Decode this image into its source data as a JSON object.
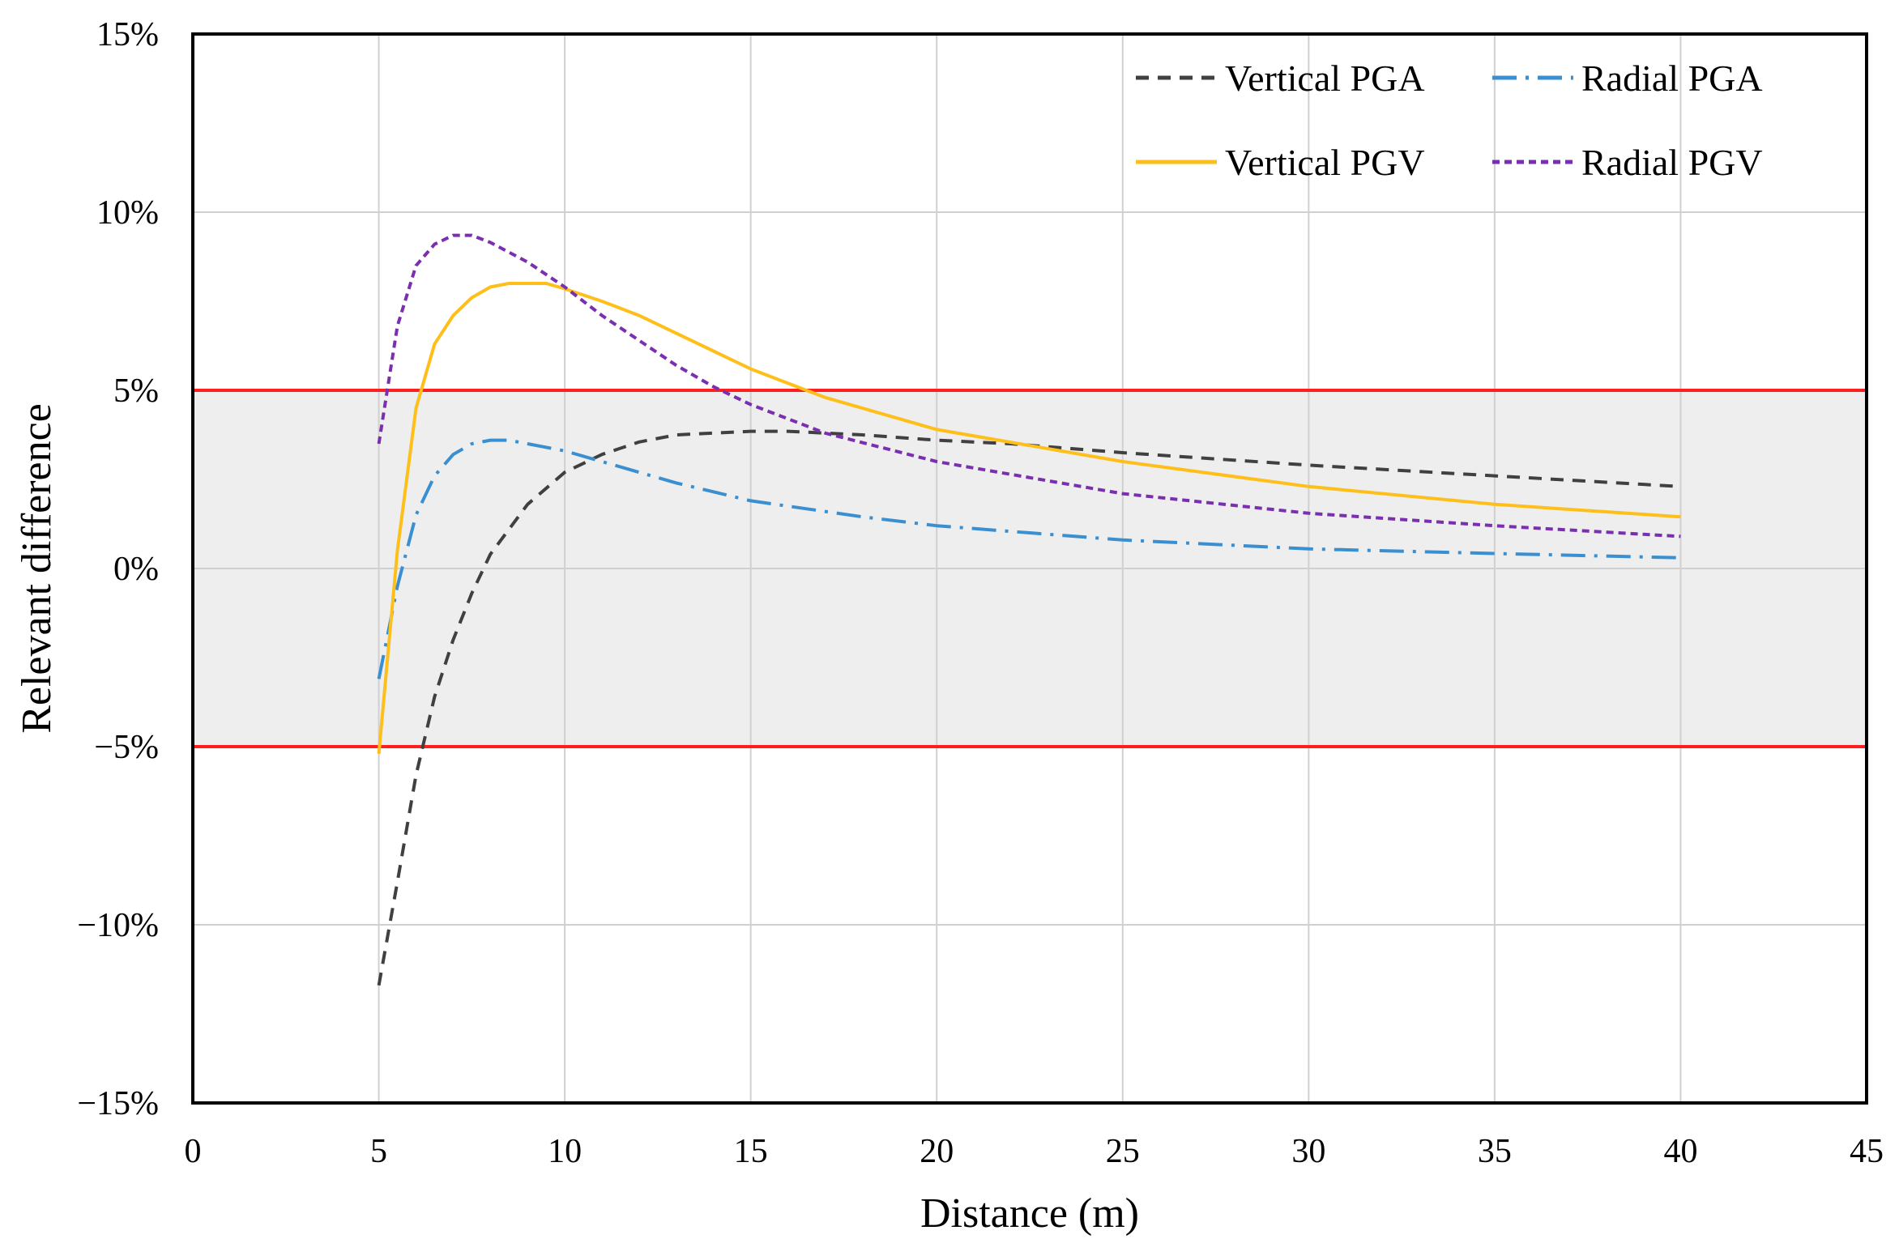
{
  "chart_data": {
    "type": "line",
    "title": "",
    "xlabel": "Distance (m)",
    "ylabel": "Relevant difference",
    "xlim": [
      0,
      45
    ],
    "ylim": [
      -15,
      15
    ],
    "x_ticks": [
      0,
      5,
      10,
      15,
      20,
      25,
      30,
      35,
      40,
      45
    ],
    "x_tick_labels": [
      "0",
      "5",
      "10",
      "15",
      "20",
      "25",
      "30",
      "35",
      "40",
      "45"
    ],
    "y_ticks": [
      15,
      10,
      5,
      0,
      -5,
      -10,
      -15
    ],
    "y_tick_labels": [
      "15%",
      "10%",
      "5%",
      "0%",
      "−5%",
      "−10%",
      "−15%"
    ],
    "grid": true,
    "legend_position": "top-right",
    "tolerance_band": {
      "upper": 5,
      "lower": -5,
      "fill": "#eeeeee",
      "line_color": "#ff1f1f"
    },
    "series": [
      {
        "name": "Vertical PGA",
        "color": "#404040",
        "style": "dashed",
        "x": [
          5,
          5.5,
          6,
          6.5,
          7,
          7.5,
          8,
          9,
          10,
          11,
          12,
          13,
          14,
          15,
          16,
          18,
          20,
          22,
          25,
          30,
          35,
          40
        ],
        "values": [
          -11.7,
          -8.8,
          -5.8,
          -3.6,
          -2.0,
          -0.7,
          0.4,
          1.8,
          2.7,
          3.2,
          3.55,
          3.75,
          3.8,
          3.85,
          3.85,
          3.75,
          3.6,
          3.5,
          3.25,
          2.9,
          2.6,
          2.3
        ]
      },
      {
        "name": "Radial PGA",
        "color": "#3a8fd0",
        "style": "dashdot",
        "x": [
          5,
          5.5,
          6,
          6.5,
          7,
          7.5,
          8,
          8.5,
          9,
          10,
          11,
          12,
          13,
          15,
          18,
          20,
          25,
          30,
          35,
          40
        ],
        "values": [
          -3.1,
          -0.5,
          1.5,
          2.6,
          3.2,
          3.5,
          3.6,
          3.6,
          3.5,
          3.3,
          3.0,
          2.7,
          2.4,
          1.9,
          1.45,
          1.2,
          0.8,
          0.55,
          0.42,
          0.3
        ]
      },
      {
        "name": "Vertical PGV",
        "color": "#ffbf1a",
        "style": "solid",
        "x": [
          5,
          5.5,
          6,
          6.5,
          7,
          7.5,
          8,
          8.5,
          9,
          9.5,
          10,
          11,
          12,
          13,
          15,
          17,
          20,
          25,
          30,
          35,
          40
        ],
        "values": [
          -5.2,
          0.5,
          4.5,
          6.3,
          7.1,
          7.6,
          7.9,
          8.0,
          8.0,
          8.0,
          7.85,
          7.5,
          7.1,
          6.6,
          5.6,
          4.8,
          3.9,
          3.0,
          2.3,
          1.8,
          1.45
        ]
      },
      {
        "name": "Radial PGV",
        "color": "#7a2fb0",
        "style": "dotted",
        "x": [
          5,
          5.5,
          6,
          6.5,
          7,
          7.5,
          8,
          9,
          10,
          11,
          12,
          13,
          14,
          15,
          17,
          20,
          25,
          30,
          35,
          40
        ],
        "values": [
          3.5,
          6.8,
          8.5,
          9.1,
          9.35,
          9.35,
          9.15,
          8.6,
          7.9,
          7.1,
          6.4,
          5.7,
          5.1,
          4.6,
          3.8,
          3.0,
          2.1,
          1.55,
          1.2,
          0.9
        ]
      }
    ]
  }
}
